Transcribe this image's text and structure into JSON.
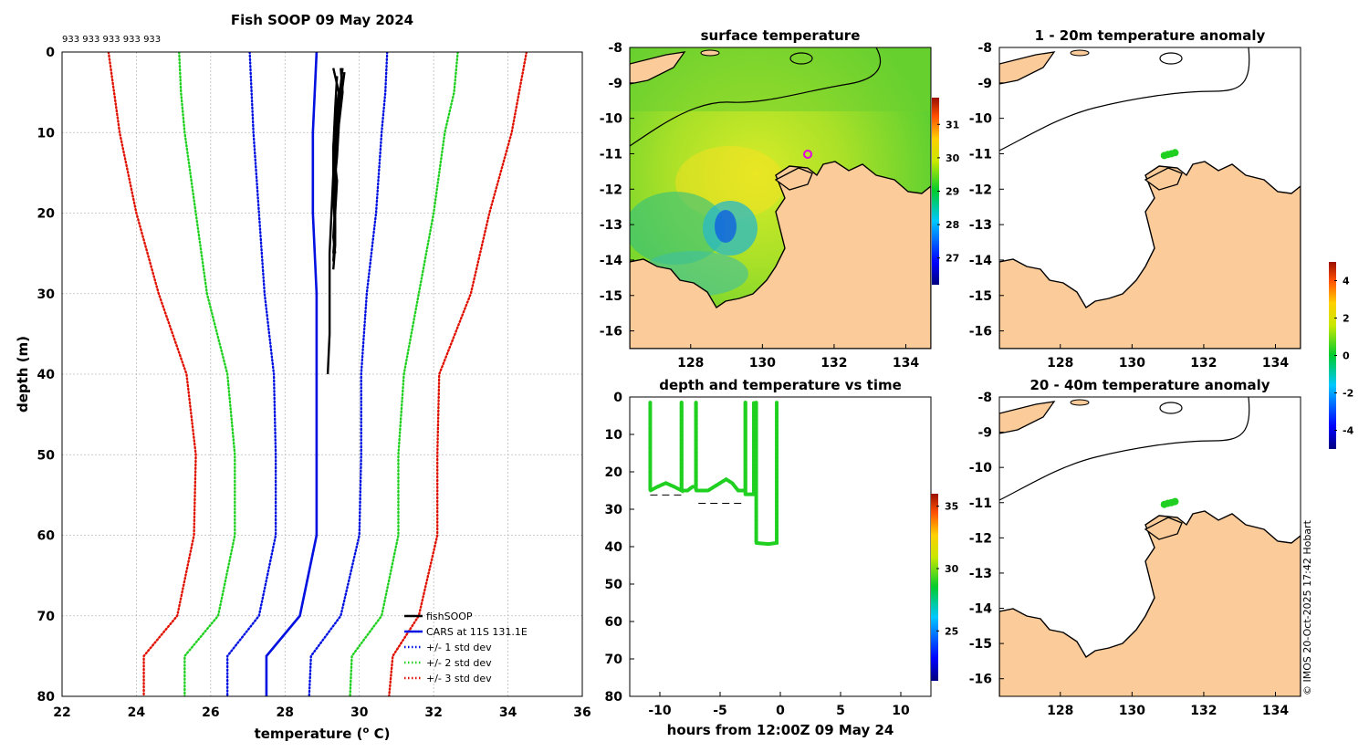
{
  "page": {
    "copyright": "© IMOS 20-Oct-2025 17:42 Hobart"
  },
  "colors": {
    "fishsoop": "#000000",
    "cars": "#0010e0",
    "std1": "#0010e0",
    "std2": "#20d020",
    "std3": "#e01000",
    "land": "#fbcb99",
    "obs_points": "#20d020"
  },
  "chart_data": [
    {
      "id": "profile",
      "type": "line",
      "title": "Fish SOOP 09 May 2024",
      "annotation": "933 933 933 933 933",
      "xlabel": "temperature (",
      "xlabel_sup": "o",
      "xlabel_suffix": " C)",
      "ylabel": "depth (m)",
      "xlim": [
        22,
        36
      ],
      "ylim": [
        0,
        80
      ],
      "x_ticks": [
        "22",
        "24",
        "26",
        "28",
        "30",
        "32",
        "34",
        "36"
      ],
      "y_ticks": [
        "0",
        "10",
        "20",
        "30",
        "40",
        "50",
        "60",
        "70",
        "80"
      ],
      "grid": true,
      "legend_position": "bottom-right",
      "legend": [
        "fishSOOP",
        "CARS at 11S 131.1E",
        "+/- 1 std dev",
        "+/- 2 std dev",
        "+/- 3 std dev"
      ],
      "depth": [
        0,
        5,
        10,
        20,
        30,
        40,
        50,
        60,
        70,
        75,
        80
      ],
      "series": [
        {
          "name": "CARS at 11S 131.1E",
          "style": "solid",
          "temperature": [
            28.85,
            28.8,
            28.75,
            28.75,
            28.85,
            28.85,
            28.85,
            28.85,
            28.4,
            27.5,
            27.5
          ]
        },
        {
          "name": "+1 std dev",
          "style": "dotted",
          "temperature": [
            30.75,
            30.7,
            30.6,
            30.45,
            30.2,
            30.05,
            30.05,
            30.0,
            29.5,
            28.7,
            28.65
          ]
        },
        {
          "name": "-1 std dev",
          "style": "dotted",
          "temperature": [
            27.05,
            27.1,
            27.15,
            27.3,
            27.45,
            27.7,
            27.75,
            27.75,
            27.3,
            26.45,
            26.45
          ]
        },
        {
          "name": "+2 std dev",
          "style": "dotted",
          "temperature": [
            32.65,
            32.55,
            32.3,
            32.0,
            31.6,
            31.2,
            31.05,
            31.05,
            30.6,
            29.8,
            29.75
          ]
        },
        {
          "name": "-2 std dev",
          "style": "dotted",
          "temperature": [
            25.15,
            25.2,
            25.3,
            25.6,
            25.9,
            26.45,
            26.65,
            26.65,
            26.2,
            25.3,
            25.3
          ]
        },
        {
          "name": "+3 std dev",
          "style": "dotted",
          "temperature": [
            34.5,
            34.3,
            34.1,
            33.5,
            33.0,
            32.15,
            32.1,
            32.1,
            31.6,
            30.9,
            30.8
          ]
        },
        {
          "name": "-3 std dev",
          "style": "dotted",
          "temperature": [
            23.25,
            23.4,
            23.55,
            24.0,
            24.6,
            25.35,
            25.6,
            25.55,
            25.1,
            24.2,
            24.2
          ]
        }
      ],
      "fishsoop_casts": [
        {
          "depth": [
            2,
            5,
            8,
            12,
            16,
            20,
            24,
            27
          ],
          "temperature": [
            29.3,
            29.45,
            29.35,
            29.3,
            29.4,
            29.35,
            29.35,
            29.3
          ]
        },
        {
          "depth": [
            2,
            5,
            9,
            13,
            18,
            22,
            26
          ],
          "temperature": [
            29.5,
            29.55,
            29.45,
            29.4,
            29.3,
            29.35,
            29.3
          ]
        },
        {
          "depth": [
            2.5,
            6,
            10,
            14,
            19,
            23,
            25
          ],
          "temperature": [
            29.6,
            29.5,
            29.4,
            29.35,
            29.35,
            29.3,
            29.35
          ]
        },
        {
          "depth": [
            3,
            7,
            12,
            17,
            22,
            25
          ],
          "temperature": [
            29.4,
            29.35,
            29.3,
            29.3,
            29.35,
            29.3
          ]
        },
        {
          "depth": [
            2,
            6,
            10,
            15,
            20,
            25,
            30,
            35,
            40
          ],
          "temperature": [
            29.55,
            29.45,
            29.35,
            29.3,
            29.25,
            29.2,
            29.2,
            29.2,
            29.15
          ]
        }
      ]
    },
    {
      "id": "sst_map",
      "type": "heatmap",
      "title": "surface temperature",
      "xlim": [
        126.3,
        134.7
      ],
      "ylim": [
        -16.5,
        -8
      ],
      "x_ticks": [
        "128",
        "130",
        "132",
        "134"
      ],
      "y_ticks": [
        "-8",
        "-9",
        "-10",
        "-11",
        "-12",
        "-13",
        "-14",
        "-15",
        "-16"
      ],
      "colorbar_ticks": [
        "27",
        "28",
        "29",
        "30",
        "31"
      ],
      "colorbar_range": [
        26.2,
        31.8
      ],
      "marker": {
        "lon": 131.1,
        "lat": -11.0
      }
    },
    {
      "id": "depth_time",
      "type": "scatter",
      "title": "depth and temperature vs time",
      "xlabel": "hours from 12:00Z 09 May 24",
      "xlim": [
        -12.5,
        12.5
      ],
      "ylim": [
        0,
        80
      ],
      "x_ticks": [
        "-10",
        "-5",
        "0",
        "5",
        "10"
      ],
      "y_ticks": [
        "0",
        "10",
        "20",
        "30",
        "40",
        "50",
        "60",
        "70",
        "80"
      ],
      "colorbar_ticks": [
        "25",
        "30",
        "35"
      ],
      "colorbar_range": [
        21,
        36
      ],
      "casts": [
        {
          "start": -10.8,
          "bottom_hours": [
            -10.8,
            -10.2,
            -9.5,
            -8.8,
            -8.2
          ],
          "bottom_depths": [
            25,
            24,
            23,
            24,
            25
          ],
          "end": -8.2
        },
        {
          "start": -8.2,
          "bottom_hours": [
            -8.2,
            -7.7,
            -7.3,
            -7.0
          ],
          "bottom_depths": [
            25,
            25,
            24,
            24
          ],
          "end": -7.0
        },
        {
          "start": -7.0,
          "bottom_hours": [
            -7.0,
            -6.0,
            -5.0,
            -4.5,
            -4.0,
            -3.5,
            -2.9
          ],
          "bottom_depths": [
            25,
            25,
            23,
            22,
            23,
            25,
            25
          ],
          "end": -2.9
        },
        {
          "start": -2.9,
          "bottom_hours": [
            -2.9,
            -2.2
          ],
          "bottom_depths": [
            26,
            26
          ],
          "end": -2.2
        },
        {
          "start": -2.0,
          "bottom_hours": [
            -2.0,
            -1.0,
            -0.3
          ],
          "bottom_depths": [
            39,
            39.3,
            39
          ],
          "end": -0.3
        }
      ],
      "seafloor_segments": [
        {
          "x": [
            -10.8,
            -8.2
          ],
          "depth": 26.2
        },
        {
          "x": [
            -6.8,
            -3.0
          ],
          "depth": 28.4
        }
      ]
    },
    {
      "id": "anom_1_20",
      "type": "heatmap",
      "title": "1 - 20m temperature anomaly",
      "xlim": [
        126.3,
        134.7
      ],
      "ylim": [
        -16.5,
        -8
      ],
      "x_ticks": [
        "128",
        "130",
        "132",
        "134"
      ],
      "y_ticks": [
        "-8",
        "-9",
        "-10",
        "-11",
        "-12",
        "-13",
        "-14",
        "-15",
        "-16"
      ],
      "points": {
        "lon": [
          130.9,
          131.0,
          131.1,
          131.2
        ],
        "lat": [
          -11.05,
          -11.02,
          -11.0,
          -10.97
        ]
      }
    },
    {
      "id": "anom_20_40",
      "type": "heatmap",
      "title": "20 - 40m temperature anomaly",
      "xlim": [
        126.3,
        134.7
      ],
      "ylim": [
        -16.5,
        -8
      ],
      "x_ticks": [
        "128",
        "130",
        "132",
        "134"
      ],
      "y_ticks": [
        "-8",
        "-9",
        "-10",
        "-11",
        "-12",
        "-13",
        "-14",
        "-15",
        "-16"
      ],
      "points": {
        "lon": [
          130.9,
          131.0,
          131.1,
          131.2
        ],
        "lat": [
          -11.05,
          -11.02,
          -11.0,
          -10.97
        ]
      },
      "colorbar_ticks": [
        "-4",
        "-2",
        "0",
        "2",
        "4"
      ],
      "colorbar_range": [
        -5,
        5
      ]
    }
  ]
}
